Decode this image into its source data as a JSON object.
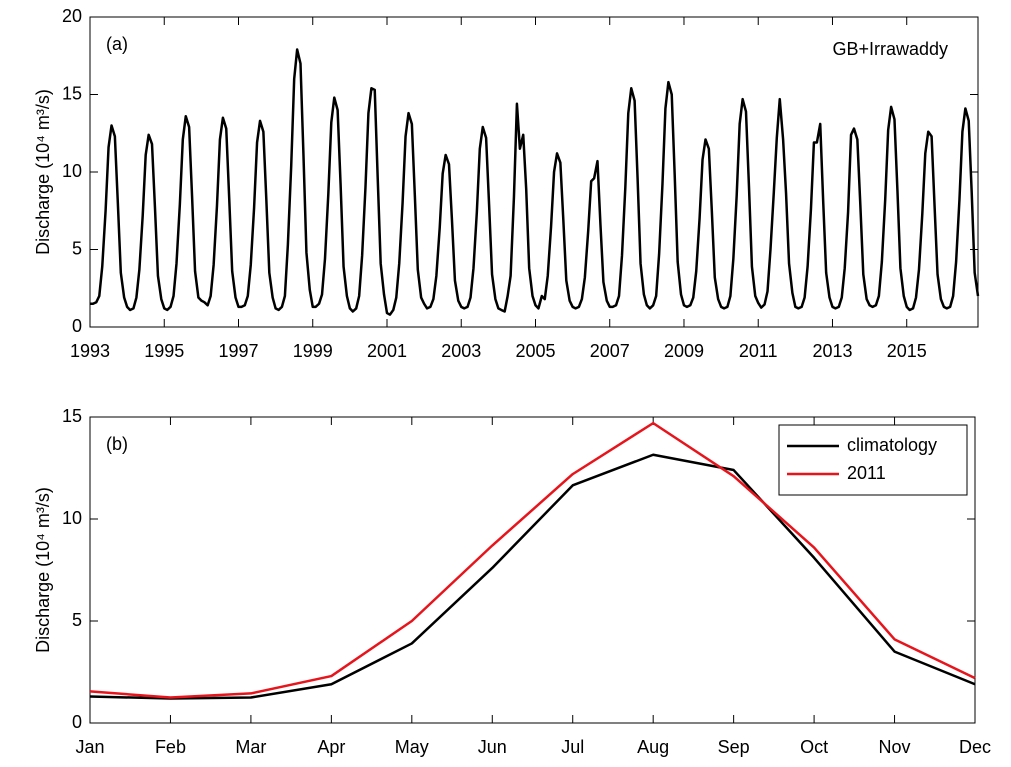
{
  "chart_data": [
    {
      "type": "line",
      "annotation": "(a)",
      "title": "GB+Irrawaddy",
      "y_label": "Discharge  (10⁴ m³/s)",
      "x": [
        1993,
        1993.08,
        1993.17,
        1993.25,
        1993.33,
        1993.42,
        1993.5,
        1993.58,
        1993.67,
        1993.75,
        1993.83,
        1993.92,
        1994,
        1994.08,
        1994.17,
        1994.25,
        1994.33,
        1994.42,
        1994.5,
        1994.58,
        1994.67,
        1994.75,
        1994.83,
        1994.92,
        1995,
        1995.08,
        1995.17,
        1995.25,
        1995.33,
        1995.42,
        1995.5,
        1995.58,
        1995.67,
        1995.75,
        1995.83,
        1995.92,
        1996,
        1996.08,
        1996.17,
        1996.25,
        1996.33,
        1996.42,
        1996.5,
        1996.58,
        1996.67,
        1996.75,
        1996.83,
        1996.92,
        1997,
        1997.08,
        1997.17,
        1997.25,
        1997.33,
        1997.42,
        1997.5,
        1997.58,
        1997.67,
        1997.75,
        1997.83,
        1997.92,
        1998,
        1998.08,
        1998.17,
        1998.25,
        1998.33,
        1998.42,
        1998.5,
        1998.58,
        1998.67,
        1998.75,
        1998.83,
        1998.92,
        1999,
        1999.08,
        1999.17,
        1999.25,
        1999.33,
        1999.42,
        1999.5,
        1999.58,
        1999.67,
        1999.75,
        1999.83,
        1999.92,
        2000,
        2000.08,
        2000.17,
        2000.25,
        2000.33,
        2000.42,
        2000.5,
        2000.58,
        2000.67,
        2000.75,
        2000.83,
        2000.92,
        2001,
        2001.08,
        2001.17,
        2001.25,
        2001.33,
        2001.42,
        2001.5,
        2001.58,
        2001.67,
        2001.75,
        2001.83,
        2001.92,
        2002,
        2002.08,
        2002.17,
        2002.25,
        2002.33,
        2002.42,
        2002.5,
        2002.58,
        2002.67,
        2002.75,
        2002.83,
        2002.92,
        2003,
        2003.08,
        2003.17,
        2003.25,
        2003.33,
        2003.42,
        2003.5,
        2003.58,
        2003.67,
        2003.75,
        2003.83,
        2003.92,
        2004,
        2004.08,
        2004.17,
        2004.25,
        2004.33,
        2004.42,
        2004.5,
        2004.58,
        2004.67,
        2004.75,
        2004.83,
        2004.92,
        2005,
        2005.08,
        2005.17,
        2005.25,
        2005.33,
        2005.42,
        2005.5,
        2005.58,
        2005.67,
        2005.75,
        2005.83,
        2005.92,
        2006,
        2006.08,
        2006.17,
        2006.25,
        2006.33,
        2006.42,
        2006.5,
        2006.58,
        2006.67,
        2006.75,
        2006.83,
        2006.92,
        2007,
        2007.08,
        2007.17,
        2007.25,
        2007.33,
        2007.42,
        2007.5,
        2007.58,
        2007.67,
        2007.75,
        2007.83,
        2007.92,
        2008,
        2008.08,
        2008.17,
        2008.25,
        2008.33,
        2008.42,
        2008.5,
        2008.58,
        2008.67,
        2008.75,
        2008.83,
        2008.92,
        2009,
        2009.08,
        2009.17,
        2009.25,
        2009.33,
        2009.42,
        2009.5,
        2009.58,
        2009.67,
        2009.75,
        2009.83,
        2009.92,
        2010,
        2010.08,
        2010.17,
        2010.25,
        2010.33,
        2010.42,
        2010.5,
        2010.58,
        2010.67,
        2010.75,
        2010.83,
        2010.92,
        2011,
        2011.08,
        2011.17,
        2011.25,
        2011.33,
        2011.42,
        2011.5,
        2011.58,
        2011.67,
        2011.75,
        2011.83,
        2011.92,
        2012,
        2012.08,
        2012.17,
        2012.25,
        2012.33,
        2012.42,
        2012.5,
        2012.58,
        2012.67,
        2012.75,
        2012.83,
        2012.92,
        2013,
        2013.08,
        2013.17,
        2013.25,
        2013.33,
        2013.42,
        2013.5,
        2013.58,
        2013.67,
        2013.75,
        2013.83,
        2013.92,
        2014,
        2014.08,
        2014.17,
        2014.25,
        2014.33,
        2014.42,
        2014.5,
        2014.58,
        2014.67,
        2014.75,
        2014.83,
        2014.92,
        2015,
        2015.08,
        2015.17,
        2015.25,
        2015.33,
        2015.42,
        2015.5,
        2015.58,
        2015.67,
        2015.75,
        2015.83,
        2015.92,
        2016,
        2016.08,
        2016.17,
        2016.25,
        2016.33,
        2016.42,
        2016.5,
        2016.58,
        2016.67,
        2016.75,
        2016.83,
        2016.92
      ],
      "series": [
        {
          "color": "#000000",
          "values": [
            1.5,
            1.5,
            1.6,
            2.0,
            3.9,
            7.5,
            11.6,
            13.0,
            12.3,
            8.0,
            3.5,
            1.9,
            1.3,
            1.1,
            1.2,
            1.9,
            3.7,
            7.2,
            11.1,
            12.4,
            11.8,
            7.7,
            3.3,
            1.8,
            1.2,
            1.1,
            1.3,
            2.0,
            4.1,
            7.9,
            12.1,
            13.6,
            12.9,
            8.4,
            3.6,
            1.9,
            1.7,
            1.6,
            1.4,
            2.0,
            4.0,
            7.8,
            12.1,
            13.5,
            12.8,
            8.3,
            3.6,
            1.9,
            1.3,
            1.3,
            1.4,
            2.0,
            4.0,
            7.7,
            11.9,
            13.3,
            12.6,
            8.2,
            3.5,
            1.9,
            1.2,
            1.1,
            1.3,
            2.0,
            5.3,
            10.4,
            16.0,
            17.9,
            17.0,
            11.1,
            4.8,
            2.4,
            1.3,
            1.3,
            1.5,
            2.1,
            4.4,
            8.6,
            13.2,
            14.8,
            14.0,
            9.2,
            3.9,
            2.0,
            1.2,
            1.0,
            1.2,
            2.0,
            4.6,
            9.0,
            13.8,
            15.4,
            15.3,
            9.6,
            4.1,
            2.1,
            0.9,
            0.8,
            1.1,
            1.9,
            4.1,
            8.0,
            12.3,
            13.8,
            13.1,
            8.5,
            3.7,
            1.9,
            1.5,
            1.2,
            1.3,
            1.8,
            3.3,
            6.4,
            9.9,
            11.1,
            10.5,
            6.9,
            3.0,
            1.7,
            1.3,
            1.2,
            1.3,
            1.9,
            3.8,
            7.4,
            11.5,
            12.9,
            12.2,
            7.9,
            3.4,
            1.8,
            1.2,
            1.1,
            1.0,
            2.0,
            3.3,
            8.4,
            14.4,
            11.5,
            12.4,
            8.9,
            3.8,
            2.0,
            1.4,
            1.2,
            2.0,
            1.8,
            3.3,
            6.5,
            10.0,
            11.2,
            10.6,
            6.9,
            3.0,
            1.7,
            1.3,
            1.2,
            1.3,
            1.8,
            3.2,
            6.2,
            9.4,
            9.6,
            10.7,
            6.6,
            2.9,
            1.7,
            1.3,
            1.3,
            1.4,
            2.0,
            4.6,
            9.0,
            13.8,
            15.4,
            14.6,
            9.6,
            4.1,
            2.1,
            1.4,
            1.2,
            1.4,
            2.0,
            4.7,
            9.2,
            14.1,
            15.8,
            15.0,
            9.8,
            4.2,
            2.1,
            1.4,
            1.3,
            1.4,
            1.9,
            3.6,
            7.0,
            10.8,
            12.1,
            11.5,
            7.5,
            3.2,
            1.8,
            1.3,
            1.2,
            1.3,
            2.0,
            4.4,
            8.5,
            13.1,
            14.7,
            13.9,
            9.1,
            3.9,
            2.0,
            1.55,
            1.25,
            1.45,
            2.3,
            5.0,
            8.7,
            12.2,
            14.7,
            12.1,
            8.6,
            4.1,
            2.2,
            1.3,
            1.2,
            1.3,
            1.9,
            3.9,
            7.6,
            11.9,
            11.9,
            13.1,
            8.1,
            3.5,
            1.9,
            1.3,
            1.2,
            1.3,
            1.9,
            3.8,
            7.4,
            12.4,
            12.8,
            12.1,
            7.9,
            3.4,
            1.8,
            1.4,
            1.3,
            1.4,
            2.0,
            4.2,
            8.2,
            12.7,
            14.2,
            13.4,
            8.8,
            3.8,
            2.0,
            1.3,
            1.1,
            1.2,
            1.9,
            3.7,
            7.3,
            11.2,
            12.6,
            12.3,
            7.8,
            3.4,
            1.8,
            1.3,
            1.2,
            1.3,
            2.0,
            4.2,
            8.2,
            12.6,
            14.1,
            13.3,
            8.7,
            3.5,
            2.0
          ]
        }
      ],
      "xlim": [
        1993,
        2016.92
      ],
      "xticks": [
        1993,
        1995,
        1997,
        1999,
        2001,
        2003,
        2005,
        2007,
        2009,
        2011,
        2013,
        2015
      ],
      "ylim": [
        0,
        20
      ],
      "yticks": [
        0,
        5,
        10,
        15,
        20
      ]
    },
    {
      "type": "line",
      "annotation": "(b)",
      "y_label": "Discharge  (10⁴ m³/s)",
      "categories": [
        "Jan",
        "Feb",
        "Mar",
        "Apr",
        "May",
        "Jun",
        "Jul",
        "Aug",
        "Sep",
        "Oct",
        "Nov",
        "Dec"
      ],
      "series": [
        {
          "name": "climatology",
          "color": "#000000",
          "values": [
            1.3,
            1.2,
            1.25,
            1.9,
            3.9,
            7.6,
            11.65,
            13.15,
            12.4,
            8.1,
            3.5,
            1.9
          ]
        },
        {
          "name": "2011",
          "color": "#e8141c",
          "values": [
            1.55,
            1.25,
            1.45,
            2.3,
            5.0,
            8.7,
            12.2,
            14.7,
            12.1,
            8.6,
            4.1,
            2.2
          ]
        }
      ],
      "ylim": [
        0,
        15
      ],
      "yticks": [
        0,
        5,
        10,
        15
      ],
      "legend": "top-right"
    }
  ]
}
